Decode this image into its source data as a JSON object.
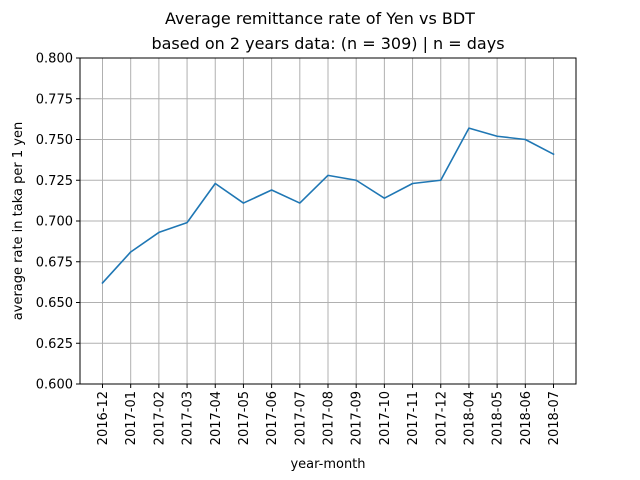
{
  "chart_data": {
    "type": "line",
    "title": "Average remittance rate of Yen vs BDT",
    "subtitle": "based on 2 years data: (n = 309) | n = days",
    "xlabel": "year-month",
    "ylabel": "average rate in taka per 1 yen",
    "categories": [
      "2016-12",
      "2017-01",
      "2017-02",
      "2017-03",
      "2017-04",
      "2017-05",
      "2017-06",
      "2017-07",
      "2017-08",
      "2017-09",
      "2017-10",
      "2017-11",
      "2017-12",
      "2018-04",
      "2018-05",
      "2018-06",
      "2018-07"
    ],
    "series": [
      {
        "values": [
          0.662,
          0.681,
          0.693,
          0.699,
          0.723,
          0.711,
          0.719,
          0.711,
          0.728,
          0.725,
          0.714,
          0.723,
          0.725,
          0.757,
          0.752,
          0.75,
          0.741
        ],
        "color": "#1f77b4"
      }
    ],
    "ylim": [
      0.6,
      0.8
    ],
    "yticks": [
      "0.600",
      "0.625",
      "0.650",
      "0.675",
      "0.700",
      "0.725",
      "0.750",
      "0.775",
      "0.800"
    ],
    "grid": true
  }
}
